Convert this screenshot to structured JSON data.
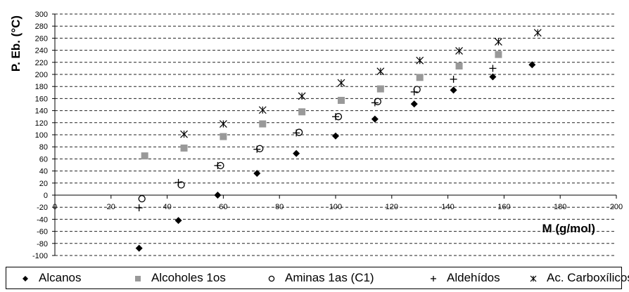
{
  "chart_data": {
    "type": "scatter",
    "title": "",
    "xlabel": "M (g/mol)",
    "ylabel": "P. Eb. (°C)",
    "xlim": [
      0,
      200
    ],
    "ylim": [
      -100,
      300
    ],
    "x_ticks": [
      0,
      20,
      40,
      60,
      80,
      100,
      120,
      140,
      160,
      180,
      200
    ],
    "y_ticks": [
      -100,
      -80,
      -60,
      -40,
      -20,
      0,
      20,
      40,
      60,
      80,
      100,
      120,
      140,
      160,
      180,
      200,
      220,
      240,
      260,
      280,
      300
    ],
    "grid": "horizontal-dashed",
    "legend_position": "bottom",
    "series": [
      {
        "name": "Alcanos",
        "marker": "diamond",
        "color": "#000000",
        "points": [
          [
            30,
            -88
          ],
          [
            44,
            -42
          ],
          [
            58,
            0
          ],
          [
            72,
            36
          ],
          [
            86,
            69
          ],
          [
            100,
            98
          ],
          [
            114,
            126
          ],
          [
            128,
            151
          ],
          [
            142,
            174
          ],
          [
            156,
            196
          ],
          [
            170,
            216
          ]
        ]
      },
      {
        "name": "Alcoholes 1os",
        "marker": "square",
        "color": "#999999",
        "points": [
          [
            32,
            65
          ],
          [
            46,
            78
          ],
          [
            60,
            97
          ],
          [
            74,
            118
          ],
          [
            88,
            138
          ],
          [
            102,
            157
          ],
          [
            116,
            176
          ],
          [
            130,
            195
          ],
          [
            144,
            214
          ],
          [
            158,
            233
          ]
        ]
      },
      {
        "name": "Aminas 1as (C1)",
        "marker": "circle",
        "color": "#000000",
        "points": [
          [
            31,
            -6
          ],
          [
            45,
            17
          ],
          [
            59,
            49
          ],
          [
            73,
            77
          ],
          [
            87,
            104
          ],
          [
            101,
            130
          ],
          [
            115,
            155
          ],
          [
            129,
            175
          ]
        ]
      },
      {
        "name": "Aldehídos",
        "marker": "plus",
        "color": "#000000",
        "points": [
          [
            30,
            -21
          ],
          [
            44,
            21
          ],
          [
            58,
            49
          ],
          [
            72,
            76
          ],
          [
            86,
            103
          ],
          [
            100,
            130
          ],
          [
            114,
            153
          ],
          [
            128,
            171
          ],
          [
            142,
            192
          ],
          [
            156,
            210
          ]
        ]
      },
      {
        "name": "Ac. Carboxílicos",
        "marker": "star",
        "color": "#000000",
        "points": [
          [
            46,
            101
          ],
          [
            60,
            118
          ],
          [
            74,
            141
          ],
          [
            88,
            164
          ],
          [
            102,
            186
          ],
          [
            116,
            205
          ],
          [
            130,
            223
          ],
          [
            144,
            239
          ],
          [
            158,
            254
          ],
          [
            172,
            269
          ]
        ]
      }
    ]
  }
}
